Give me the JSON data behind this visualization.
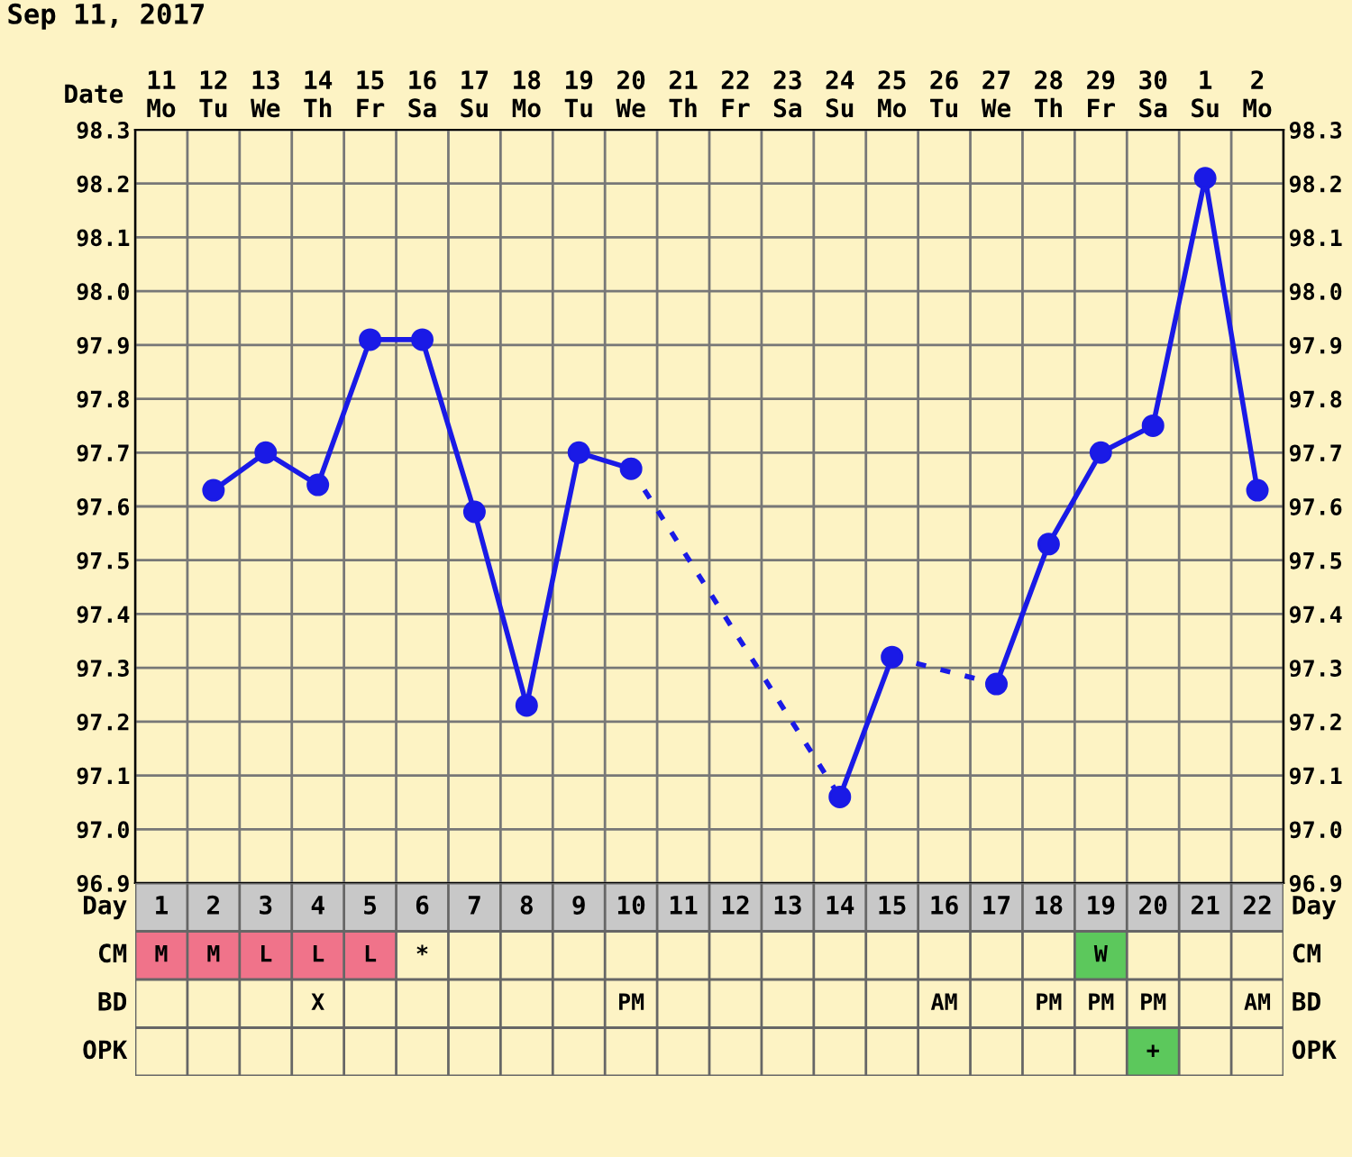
{
  "chart_data": [
    {
      "type": "line",
      "xlabel": "Date",
      "annotations": [
        "Sep 11, 2017"
      ],
      "categories": [
        "11\nMo",
        "12\nTu",
        "13\nWe",
        "14\nTh",
        "15\nFr",
        "16\nSa",
        "17\nSu",
        "18\nMo",
        "19\nTu",
        "20\nWe",
        "21\nTh",
        "22\nFr",
        "23\nSa",
        "24\nSu",
        "25\nMo",
        "26\nTu",
        "27\nWe",
        "28\nTh",
        "29\nFr",
        "30\nSa",
        "1\nSu",
        "2\nMo"
      ],
      "series": [
        {
          "color": "#1a1ae6",
          "values": [
            null,
            97.63,
            97.7,
            97.64,
            97.91,
            97.91,
            97.59,
            97.23,
            97.7,
            97.67,
            null,
            null,
            null,
            97.06,
            97.32,
            null,
            97.27,
            97.53,
            97.7,
            97.75,
            98.21,
            97.63
          ]
        }
      ],
      "ylim": [
        96.9,
        98.3
      ],
      "yticks": [
        96.9,
        {
          "value": 97.0,
          "label": "97.0"
        },
        97.1,
        97.2,
        97.3,
        97.4,
        97.5,
        97.6,
        97.7,
        97.8,
        97.9,
        {
          "value": 98.0,
          "label": "98.0"
        },
        98.1,
        98.2,
        98.3
      ],
      "y2lim": [
        96.9,
        98.3
      ],
      "y2ticks": [
        96.9,
        {
          "value": 97.0,
          "label": "97.0"
        },
        97.1,
        97.2,
        97.3,
        97.4,
        97.5,
        97.6,
        97.7,
        97.8,
        97.9,
        {
          "value": 98.0,
          "label": "98.0"
        },
        98.1,
        98.2,
        98.3
      ],
      "grid": true,
      "marker": "circle",
      "line_style": "solid",
      "legend": false
    },
    {
      "type": "heatmap",
      "xlabel": "Day",
      "categories": [
        "1",
        "2",
        "3",
        "4",
        "5",
        "6",
        "7",
        "8",
        "9",
        "10",
        "11",
        "12",
        "13",
        "14",
        "15",
        "16",
        "17",
        "18",
        "19",
        "20",
        "21",
        "22"
      ],
      "y_categories": [
        "CM",
        "BD",
        "OPK"
      ],
      "y2_categories": [
        "CM",
        "BD",
        "OPK"
      ],
      "cells": [
        [
          null,
          null,
          null,
          null,
          null,
          null,
          null,
          null,
          null,
          null,
          null,
          null,
          null,
          null,
          null,
          null,
          null,
          null,
          null,
          null,
          null,
          null
        ],
        [
          null,
          null,
          null,
          null,
          null,
          null,
          null,
          null,
          null,
          null,
          null,
          null,
          null,
          null,
          null,
          null,
          null,
          null,
          null,
          null,
          null,
          null
        ],
        [
          null,
          null,
          null,
          null,
          null,
          null,
          null,
          null,
          null,
          null,
          null,
          null,
          null,
          null,
          null,
          null,
          null,
          null,
          null,
          null,
          null,
          null
        ]
      ],
      "cell_labels": [
        [
          "M",
          "M",
          "L",
          "L",
          "L",
          "*",
          null,
          null,
          null,
          null,
          null,
          null,
          null,
          null,
          null,
          null,
          null,
          null,
          "W",
          null,
          null,
          null
        ],
        [
          null,
          null,
          null,
          "X",
          null,
          null,
          null,
          null,
          null,
          "PM",
          null,
          null,
          null,
          null,
          null,
          "AM",
          null,
          "PM",
          "PM",
          "PM",
          null,
          "AM"
        ],
        [
          null,
          null,
          null,
          null,
          null,
          null,
          null,
          null,
          null,
          null,
          null,
          null,
          null,
          null,
          null,
          null,
          null,
          null,
          null,
          "+",
          null,
          null
        ]
      ],
      "colors": [
        [
          "#f0738a",
          "#f0738a",
          "#f0738a",
          "#f0738a",
          "#f0738a",
          null,
          null,
          null,
          null,
          null,
          null,
          null,
          null,
          null,
          null,
          null,
          null,
          null,
          "#5cc85c",
          null,
          null,
          null
        ],
        [
          null,
          null,
          null,
          null,
          null,
          null,
          null,
          null,
          null,
          null,
          null,
          null,
          null,
          null,
          null,
          null,
          null,
          null,
          null,
          null,
          null,
          null
        ],
        [
          null,
          null,
          null,
          null,
          null,
          null,
          null,
          null,
          null,
          null,
          null,
          null,
          null,
          null,
          null,
          null,
          null,
          null,
          null,
          "#5cc85c",
          null,
          null
        ]
      ]
    }
  ]
}
